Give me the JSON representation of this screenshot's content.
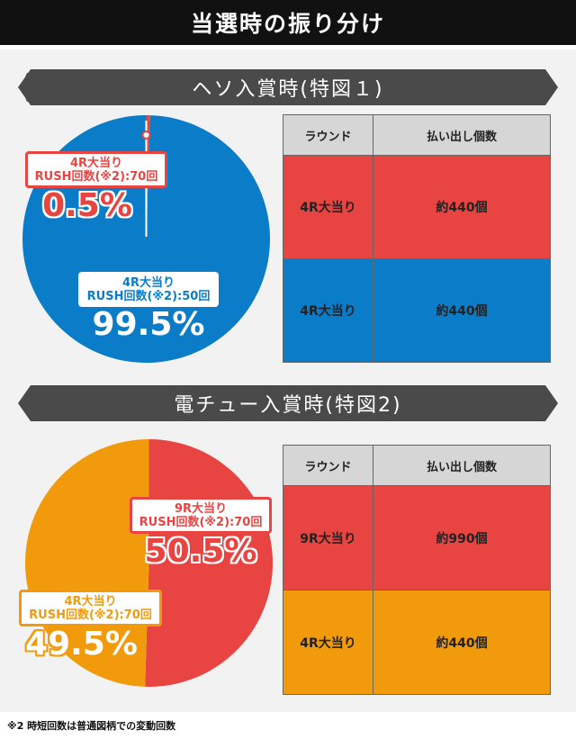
{
  "title": "当選時の振り分け",
  "colors": {
    "red": "#e84442",
    "blue": "#0a7cc8",
    "orange": "#f19a0b",
    "gray": "#d6d6d6"
  },
  "sections": [
    {
      "heading": "ヘソ入賞時(特図１)",
      "table": {
        "headers": [
          "ラウンド",
          "払い出し個数"
        ],
        "rows": [
          {
            "round": "4R大当り",
            "payout": "約440個",
            "color": "#e84442"
          },
          {
            "round": "4R大当り",
            "payout": "約440個",
            "color": "#0a7cc8"
          }
        ]
      }
    },
    {
      "heading": "電チュー入賞時(特図2)",
      "table": {
        "headers": [
          "ラウンド",
          "払い出し個数"
        ],
        "rows": [
          {
            "round": "9R大当り",
            "payout": "約990個",
            "color": "#e84442"
          },
          {
            "round": "4R大当り",
            "payout": "約440個",
            "color": "#f19a0b"
          }
        ]
      }
    }
  ],
  "chart_data": [
    {
      "type": "pie",
      "title": "ヘソ入賞時(特図１)",
      "slices": [
        {
          "name": "4R大当り RUSH回数(※2):70回",
          "line1": "4R大当り",
          "line2": "RUSH回数(※2):70回",
          "value": 0.5,
          "pct_label": "0.5%",
          "color": "#e84442"
        },
        {
          "name": "4R大当り RUSH回数(※2):50回",
          "line1": "4R大当り",
          "line2": "RUSH回数(※2):50回",
          "value": 99.5,
          "pct_label": "99.5%",
          "color": "#0a7cc8"
        }
      ]
    },
    {
      "type": "pie",
      "title": "電チュー入賞時(特図2)",
      "slices": [
        {
          "name": "9R大当り RUSH回数(※2):70回",
          "line1": "9R大当り",
          "line2": "RUSH回数(※2):70回",
          "value": 50.5,
          "pct_label": "50.5%",
          "color": "#e84442"
        },
        {
          "name": "4R大当り RUSH回数(※2):70回",
          "line1": "4R大当り",
          "line2": "RUSH回数(※2):70回",
          "value": 49.5,
          "pct_label": "49.5%",
          "color": "#f19a0b"
        }
      ]
    }
  ],
  "footnote": "※2 時短回数は普通図柄での変動回数"
}
